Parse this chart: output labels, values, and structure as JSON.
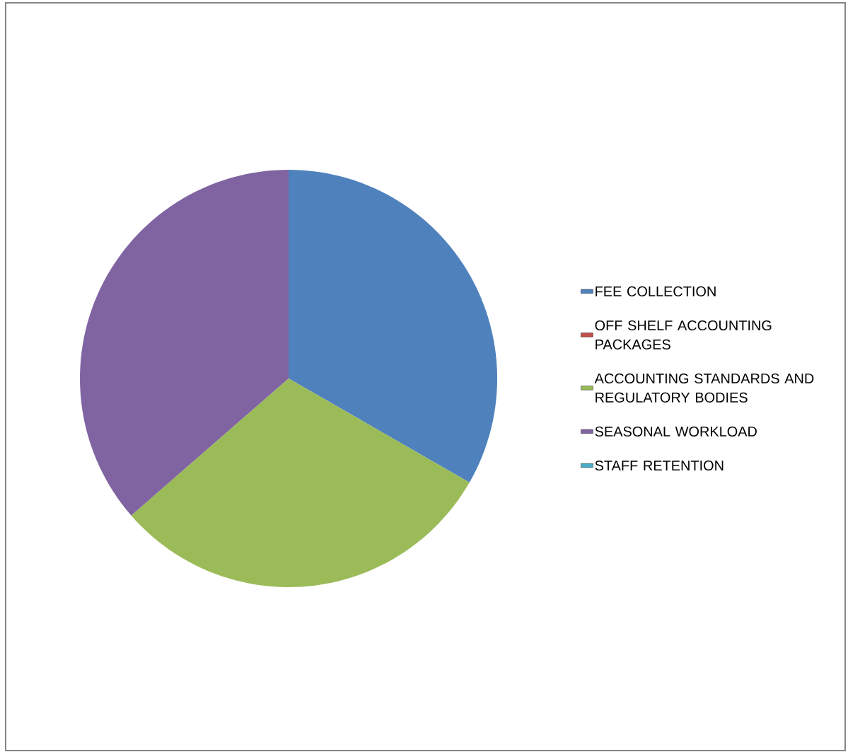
{
  "chart_data": {
    "type": "pie",
    "categories": [
      "FEE COLLECTION",
      "OFF SHELF ACCOUNTING PACKAGES",
      "ACCOUNTING STANDARDS AND REGULATORY BODIES",
      "SEASONAL WORKLOAD",
      "STAFF RETENTION"
    ],
    "values": [
      33.3,
      0,
      30.3,
      36.4,
      0
    ],
    "colors": [
      "#4f81bd",
      "#c0504d",
      "#9bbb59",
      "#8064a2",
      "#4bacc6"
    ],
    "legend": "right"
  }
}
